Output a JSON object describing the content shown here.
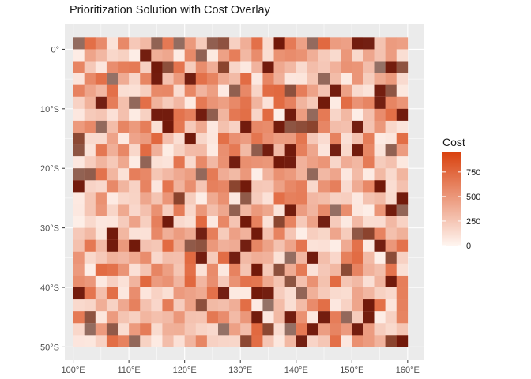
{
  "chart_data": {
    "type": "heatmap",
    "title": "Prioritization Solution with Cost Overlay",
    "xlabel": "",
    "ylabel": "",
    "x_ticks": [
      "100°E",
      "110°E",
      "120°E",
      "130°E",
      "140°E",
      "150°E",
      "160°E"
    ],
    "x_tick_values": [
      100,
      110,
      120,
      130,
      140,
      150,
      160
    ],
    "y_ticks": [
      "0°",
      "10°S",
      "20°S",
      "30°S",
      "40°S",
      "50°S"
    ],
    "y_tick_values": [
      0,
      -10,
      -20,
      -30,
      -40,
      -50
    ],
    "xlim": [
      98.5,
      163.0
    ],
    "ylim": [
      -52.2,
      4.3
    ],
    "grid": true,
    "cells": {
      "x_start": 101,
      "y_start": 1,
      "step": 2,
      "n_cols": 30,
      "n_rows": 26
    },
    "legend": {
      "title": "Cost",
      "position": "right",
      "labels": [
        "0",
        "250",
        "500",
        "750"
      ],
      "values": [
        0,
        250,
        500,
        750
      ],
      "range": [
        0,
        950
      ],
      "colors": {
        "low": "#fff5f0",
        "high": "#d9420f"
      }
    },
    "overlay": {
      "selected_color": "#5c2f23",
      "selected_high_cost_color": "#6b1406",
      "selected_alpha": 0.65
    },
    "colors": {
      "panel": "#ebebeb",
      "grid": "#ffffff",
      "text": "#4d4d4d"
    },
    "values_note": ""
  }
}
